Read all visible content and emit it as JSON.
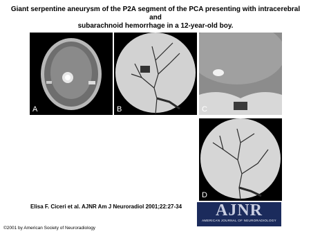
{
  "header": {
    "title": [
      "Giant serpentine aneurysm of the P2A segment of the PCA presenting with intracerebral and",
      "subarachnoid hemorrhage in a 12-year-old boy."
    ]
  },
  "panels": [
    {
      "label": "A"
    },
    {
      "label": "B"
    },
    {
      "label": "C"
    },
    {
      "label": "D"
    }
  ],
  "footer": {
    "citation": "Elisa F. Ciceri et al. AJNR Am J Neuroradiol 2001;22:27-34",
    "logo": {
      "title": "AJNR",
      "subtitle": "AMERICAN JOURNAL OF NEURORADIOLOGY"
    },
    "copyright": "©2001 by American Society of Neuroradiology"
  }
}
